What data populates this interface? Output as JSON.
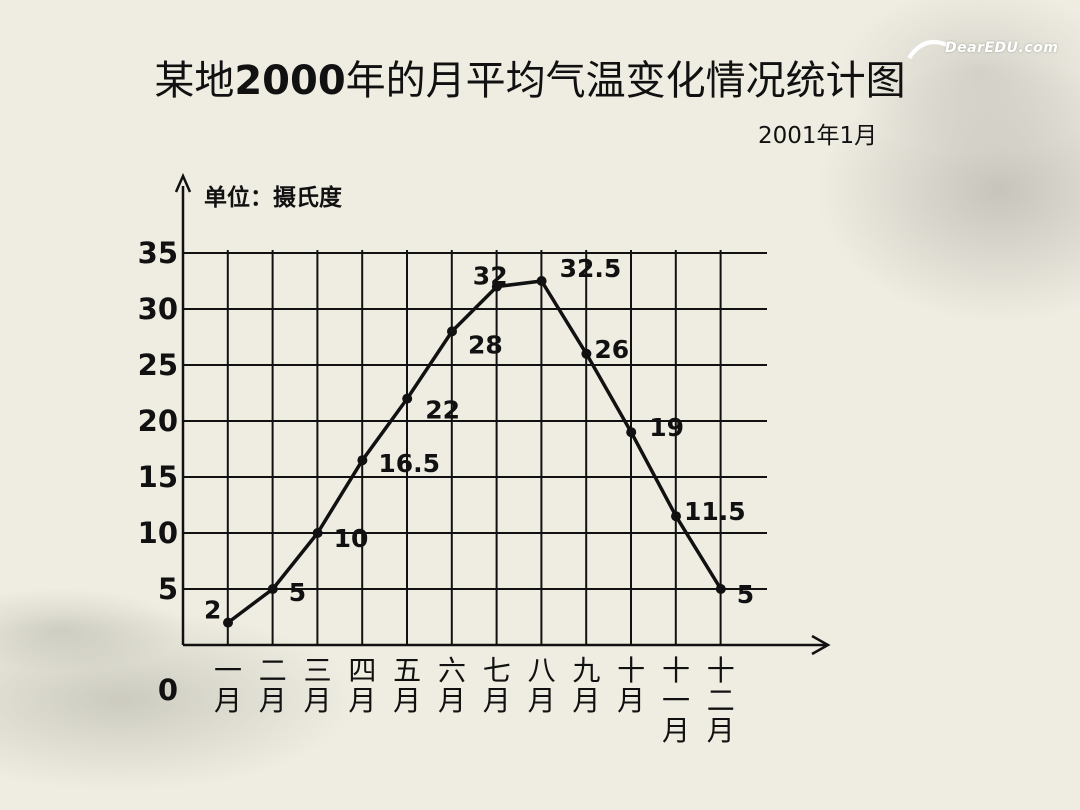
{
  "header": {
    "title_prefix": "某地",
    "title_year": "2000",
    "title_suffix": "年的月平均气温变化情况统计图",
    "date": "2001年1月",
    "unit_label": "单位：摄氏度",
    "logo_text": "DearEDU.com"
  },
  "chart_data": {
    "type": "line",
    "title": "某地2000年的月平均气温变化情况统计图",
    "ylabel": "单位：摄氏度",
    "categories": [
      "一\n月",
      "二\n月",
      "三\n月",
      "四\n月",
      "五\n月",
      "六\n月",
      "七\n月",
      "八\n月",
      "九\n月",
      "十\n月",
      "十\n一\n月",
      "十\n二\n月"
    ],
    "values": [
      2,
      5,
      10,
      16.5,
      22,
      28,
      32,
      32.5,
      26,
      19,
      11.5,
      5
    ],
    "data_labels": [
      "2",
      "5",
      "10",
      "16.5",
      "22",
      "28",
      "32",
      "32.5",
      "26",
      "19",
      "11.5",
      "5"
    ],
    "y_ticks": [
      "0",
      "5",
      "10",
      "15",
      "20",
      "25",
      "30",
      "35"
    ],
    "ylim": [
      0,
      35
    ],
    "grid": true,
    "color": "#111111"
  }
}
